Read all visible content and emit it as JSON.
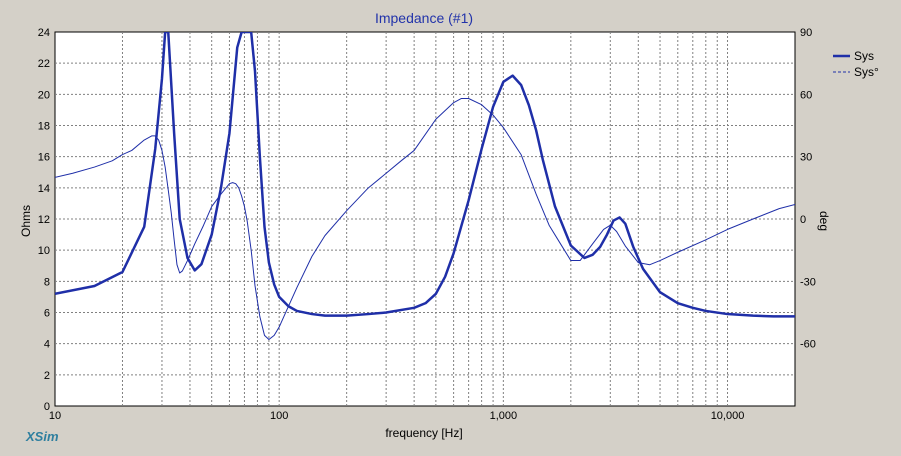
{
  "app_brand": "XSim",
  "chart_data": {
    "type": "line",
    "title": "Impedance (#1)",
    "xlabel": "frequency [Hz]",
    "ylabel": "Ohms",
    "y2label": "deg",
    "xscale": "log",
    "xlim": [
      10,
      20000
    ],
    "ylim": [
      0,
      24
    ],
    "y2lim": [
      -90,
      90
    ],
    "grid": true,
    "legend": "top-right",
    "x_ticks": [
      "10",
      "100",
      "1,000",
      "10,000"
    ],
    "y_ticks": [
      "0",
      "2",
      "4",
      "6",
      "8",
      "10",
      "12",
      "14",
      "16",
      "18",
      "20",
      "22",
      "24"
    ],
    "y2_ticks": [
      "-60",
      "-30",
      "0",
      "30",
      "60",
      "90"
    ],
    "series": [
      {
        "name": "Sys",
        "axis": "left",
        "style": "solid",
        "color": "#1f2fa8",
        "x": [
          10,
          15,
          20,
          25,
          28,
          30,
          31,
          32,
          34,
          36,
          39,
          42,
          45,
          50,
          55,
          60,
          65,
          68,
          71,
          75,
          78,
          82,
          86,
          90,
          95,
          100,
          110,
          120,
          140,
          160,
          200,
          250,
          300,
          400,
          450,
          500,
          550,
          600,
          700,
          800,
          900,
          1000,
          1100,
          1200,
          1300,
          1400,
          1500,
          1700,
          2000,
          2300,
          2500,
          2700,
          2900,
          3100,
          3300,
          3500,
          3800,
          4200,
          5000,
          6000,
          7000,
          8000,
          10000,
          13000,
          16000,
          18000,
          20000
        ],
        "values": [
          7.2,
          7.7,
          8.6,
          11.5,
          16.5,
          21.0,
          24.0,
          24.0,
          17.5,
          12.0,
          9.5,
          8.7,
          9.1,
          11.0,
          14.0,
          17.5,
          23.0,
          24.0,
          24.0,
          24.0,
          21.5,
          16.0,
          11.5,
          9.2,
          7.8,
          7.0,
          6.4,
          6.1,
          5.9,
          5.8,
          5.8,
          5.9,
          6.0,
          6.3,
          6.6,
          7.2,
          8.3,
          9.8,
          13.2,
          16.5,
          19.2,
          20.8,
          21.2,
          20.6,
          19.3,
          17.7,
          15.8,
          12.8,
          10.3,
          9.5,
          9.7,
          10.2,
          11.0,
          11.9,
          12.1,
          11.7,
          10.2,
          8.8,
          7.3,
          6.6,
          6.3,
          6.1,
          5.9,
          5.8,
          5.75,
          5.75,
          5.75
        ]
      },
      {
        "name": "Sys°",
        "axis": "right",
        "style": "dashed",
        "color": "#1f2fa8",
        "x": [
          10,
          12,
          15,
          18,
          20,
          22,
          25,
          27,
          28,
          29,
          30,
          31,
          32,
          33,
          34,
          35,
          36,
          37,
          39,
          42,
          46,
          50,
          55,
          60,
          62,
          64,
          66,
          68,
          70,
          72,
          75,
          78,
          82,
          86,
          90,
          95,
          100,
          110,
          120,
          140,
          160,
          200,
          250,
          300,
          350,
          400,
          500,
          600,
          650,
          700,
          800,
          900,
          1000,
          1200,
          1400,
          1600,
          1800,
          2000,
          2200,
          2500,
          2800,
          3000,
          3200,
          3500,
          4000,
          4500,
          5000,
          6000,
          8000,
          10000,
          13000,
          17000,
          20000
        ],
        "values": [
          20,
          22,
          25,
          28,
          31,
          33,
          38,
          40,
          40,
          38,
          33,
          25,
          14,
          3,
          -10,
          -22,
          -26,
          -25,
          -20,
          -12,
          -3,
          6,
          12,
          17,
          17.5,
          17,
          15,
          11,
          6,
          -1,
          -15,
          -32,
          -47,
          -56,
          -58,
          -56,
          -52,
          -42,
          -33,
          -18,
          -8,
          4,
          15,
          22,
          28,
          33,
          48,
          56,
          58,
          58,
          55,
          50,
          44,
          31,
          12,
          -3,
          -12,
          -20,
          -20,
          -12,
          -5,
          -3,
          -6,
          -13,
          -21,
          -22,
          -20,
          -16,
          -10,
          -5,
          0,
          5,
          7
        ]
      }
    ]
  }
}
